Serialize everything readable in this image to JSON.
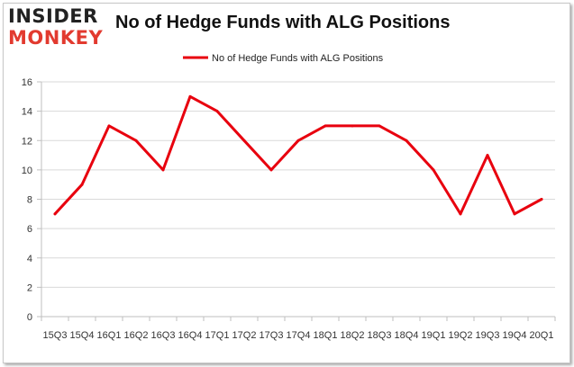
{
  "logo": {
    "line1": "INSIDER",
    "line2": "MONKEY"
  },
  "colors": {
    "series": "#e8000e",
    "logo_accent": "#e23a2f",
    "grid": "#d9d9d9"
  },
  "chart_data": {
    "type": "line",
    "title": "No of Hedge Funds with ALG Positions",
    "xlabel": "",
    "ylabel": "",
    "ylim": [
      0,
      16
    ],
    "yticks": [
      0,
      2,
      4,
      6,
      8,
      10,
      12,
      14,
      16
    ],
    "grid": true,
    "legend_position": "top-center",
    "categories": [
      "15Q3",
      "15Q4",
      "16Q1",
      "16Q2",
      "16Q3",
      "16Q4",
      "17Q1",
      "17Q2",
      "17Q3",
      "17Q4",
      "18Q1",
      "18Q2",
      "18Q3",
      "18Q4",
      "19Q1",
      "19Q2",
      "19Q3",
      "19Q4",
      "20Q1"
    ],
    "series": [
      {
        "name": "No of Hedge Funds with ALG Positions",
        "values": [
          7,
          9,
          13,
          12,
          10,
          15,
          14,
          12,
          10,
          12,
          13,
          13,
          13,
          12,
          10,
          7,
          11,
          7,
          8
        ]
      }
    ]
  }
}
